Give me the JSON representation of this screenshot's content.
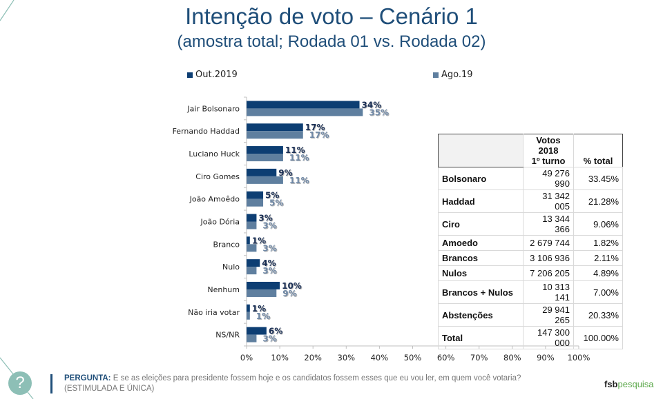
{
  "header": {
    "title": "Intenção de voto – Cenário 1",
    "subtitle": "(amostra total; Rodada 01 vs. Rodada 02)"
  },
  "chart_data": {
    "type": "bar",
    "orientation": "horizontal",
    "title": "Intenção de voto – Cenário 1",
    "subtitle": "(amostra total; Rodada 01 vs. Rodada 02)",
    "categories": [
      "Jair Bolsonaro",
      "Fernando Haddad",
      "Luciano Huck",
      "Ciro Gomes",
      "João Amoêdo",
      "João Dória",
      "Branco",
      "Nulo",
      "Nenhum",
      "Não iria votar",
      "NS/NR"
    ],
    "series": [
      {
        "name": "Out.2019",
        "color": "#0d3e73",
        "values": [
          34,
          17,
          11,
          9,
          5,
          3,
          1,
          4,
          10,
          1,
          6
        ],
        "labels": [
          "34%",
          "17%",
          "11%",
          "9%",
          "5%",
          "3%",
          "1%",
          "4%",
          "10%",
          "1%",
          "6%"
        ]
      },
      {
        "name": "Ago.19",
        "color": "#5f7f9f",
        "values": [
          35,
          17,
          11,
          11,
          5,
          3,
          3,
          3,
          9,
          1,
          3
        ],
        "labels": [
          "35%",
          "17%",
          "11%",
          "11%",
          "5%",
          "3%",
          "3%",
          "3%",
          "9%",
          "1%",
          "3%"
        ]
      }
    ],
    "xlim": [
      0,
      100
    ],
    "xticks": [
      "0%",
      "10%",
      "20%",
      "30%",
      "40%",
      "50%",
      "60%",
      "70%",
      "80%",
      "90%",
      "100%"
    ],
    "xlabel": "",
    "ylabel": "",
    "legend": "top",
    "grid": false
  },
  "table": {
    "headers": [
      "",
      "Votos 2018\n1º turno",
      "% total"
    ],
    "header_line1": "Votos 2018",
    "header_line2": "1º turno",
    "header_pct": "% total",
    "rows": [
      {
        "name": "Bolsonaro",
        "votes": "49 276 990",
        "pct": "33.45%"
      },
      {
        "name": "Haddad",
        "votes": "31 342 005",
        "pct": "21.28%"
      },
      {
        "name": "Ciro",
        "votes": "13 344 366",
        "pct": "9.06%"
      },
      {
        "name": "Amoedo",
        "votes": "2 679 744",
        "pct": "1.82%"
      },
      {
        "name": "Brancos",
        "votes": "3 106 936",
        "pct": "2.11%"
      },
      {
        "name": "Nulos",
        "votes": "7 206 205",
        "pct": "4.89%"
      },
      {
        "name": "Brancos + Nulos",
        "votes": "10 313 141",
        "pct": "7.00%"
      },
      {
        "name": "Abstenções",
        "votes": "29 941 265",
        "pct": "20.33%"
      },
      {
        "name": "Total",
        "votes": "147 300 000",
        "pct": "100.00%"
      }
    ]
  },
  "footer": {
    "help_icon": "question-mark",
    "question_label": "PERGUNTA:",
    "question_text": " E se as eleições para presidente fossem hoje e os candidatos fossem esses que eu vou ler, em quem você votaria?",
    "question_note": "(ESTIMULADA E ÚNICA)",
    "logo_part1": "fsb",
    "logo_part2": "pesquisa"
  }
}
